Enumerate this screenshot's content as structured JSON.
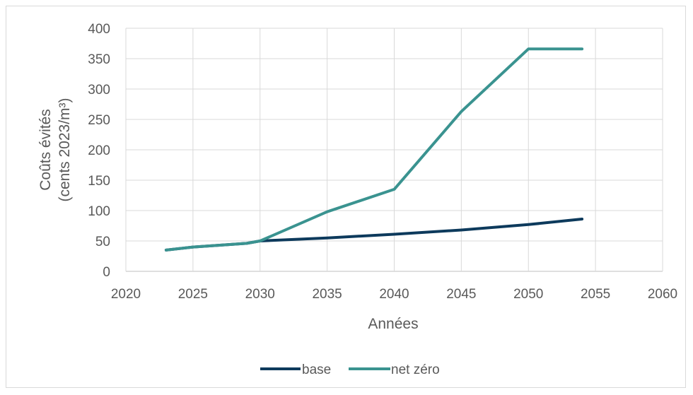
{
  "chart_data": {
    "type": "line",
    "xlabel": "Années",
    "ylabel_line1": "Coûts évités",
    "ylabel_line2": "(cents 2023/m³)",
    "xlim": [
      2020,
      2060
    ],
    "ylim": [
      0,
      400
    ],
    "xticks": [
      2020,
      2025,
      2030,
      2035,
      2040,
      2045,
      2050,
      2055,
      2060
    ],
    "yticks": [
      0,
      50,
      100,
      150,
      200,
      250,
      300,
      350,
      400
    ],
    "grid": true,
    "legend_position": "bottom",
    "series": [
      {
        "name": "base",
        "color": "#0d3a5c",
        "points": [
          [
            2023,
            35
          ],
          [
            2025,
            40
          ],
          [
            2029,
            46
          ],
          [
            2030,
            50
          ],
          [
            2035,
            55
          ],
          [
            2040,
            61
          ],
          [
            2045,
            68
          ],
          [
            2050,
            77
          ],
          [
            2054,
            86
          ]
        ]
      },
      {
        "name": "net zéro",
        "color": "#3a9390",
        "points": [
          [
            2023,
            35
          ],
          [
            2025,
            40
          ],
          [
            2029,
            46
          ],
          [
            2030,
            50
          ],
          [
            2035,
            98
          ],
          [
            2040,
            135
          ],
          [
            2045,
            263
          ],
          [
            2050,
            366
          ],
          [
            2054,
            366
          ]
        ]
      }
    ]
  }
}
